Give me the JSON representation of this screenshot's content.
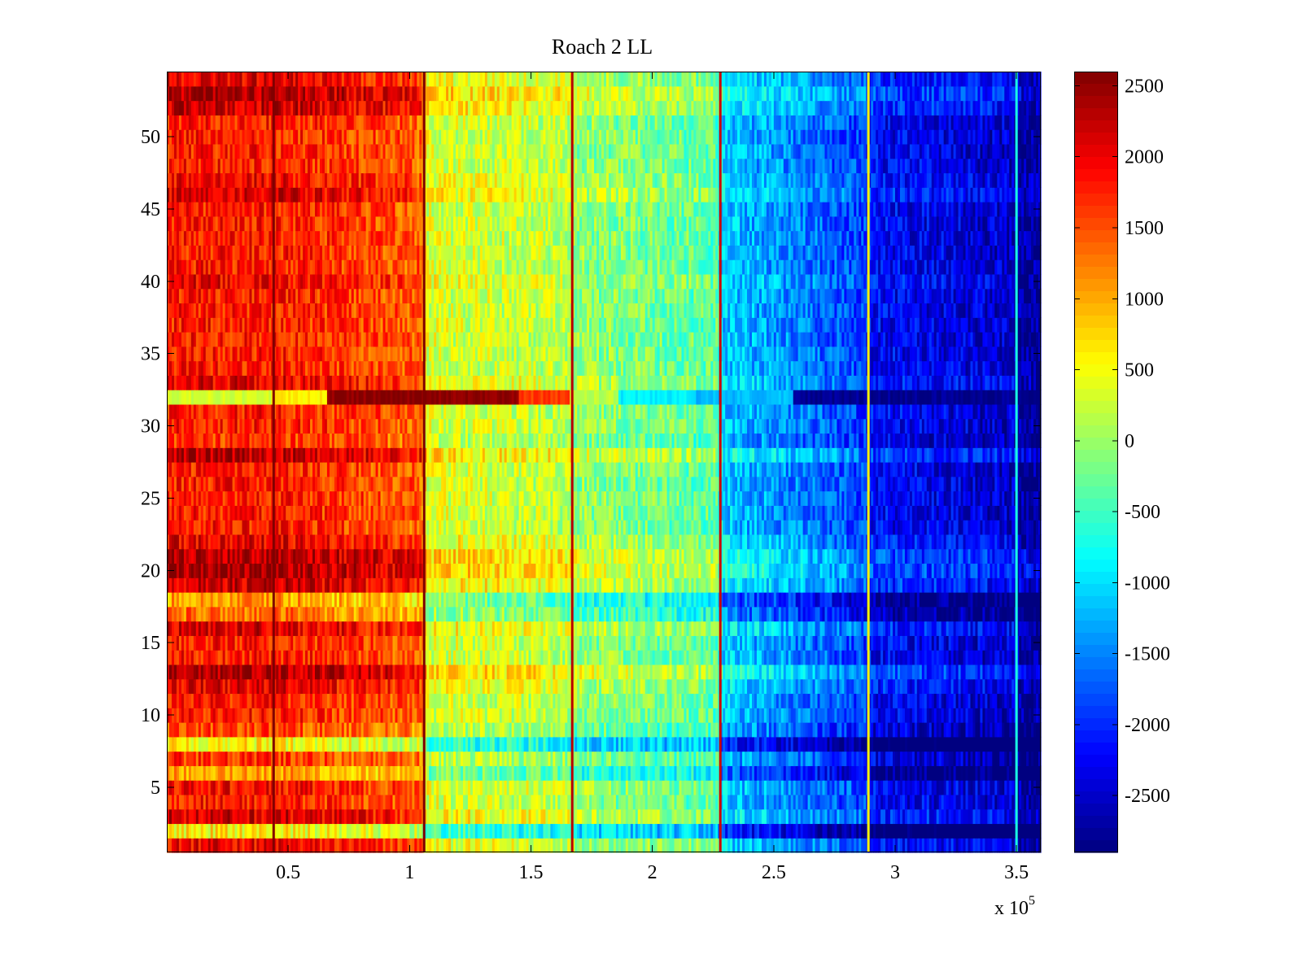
{
  "chart_data": {
    "type": "heatmap",
    "title": "Roach 2 LL",
    "xlabel": "",
    "ylabel": "",
    "x_multiplier_label": {
      "base": "x 10",
      "exponent": "5"
    },
    "xlim": [
      0,
      3.6
    ],
    "ylim": [
      0.5,
      54.5
    ],
    "x_ticks": [
      {
        "value": 0.5,
        "label": "0.5"
      },
      {
        "value": 1,
        "label": "1"
      },
      {
        "value": 1.5,
        "label": "1.5"
      },
      {
        "value": 2,
        "label": "2"
      },
      {
        "value": 2.5,
        "label": "2.5"
      },
      {
        "value": 3,
        "label": "3"
      },
      {
        "value": 3.5,
        "label": "3.5"
      }
    ],
    "y_ticks": [
      {
        "value": 5,
        "label": "5"
      },
      {
        "value": 10,
        "label": "10"
      },
      {
        "value": 15,
        "label": "15"
      },
      {
        "value": 20,
        "label": "20"
      },
      {
        "value": 25,
        "label": "25"
      },
      {
        "value": 30,
        "label": "30"
      },
      {
        "value": 35,
        "label": "35"
      },
      {
        "value": 40,
        "label": "40"
      },
      {
        "value": 45,
        "label": "45"
      },
      {
        "value": 50,
        "label": "50"
      }
    ],
    "rows": 54,
    "colormap": "jet",
    "colorbar": {
      "min": -2900,
      "max": 2600,
      "ticks": [
        {
          "value": 2500,
          "label": "2500"
        },
        {
          "value": 2000,
          "label": "2000"
        },
        {
          "value": 1500,
          "label": "1500"
        },
        {
          "value": 1000,
          "label": "1000"
        },
        {
          "value": 500,
          "label": "500"
        },
        {
          "value": 0,
          "label": "0"
        },
        {
          "value": -500,
          "label": "-500"
        },
        {
          "value": -1000,
          "label": "-1000"
        },
        {
          "value": -1500,
          "label": "-1500"
        },
        {
          "value": -2000,
          "label": "-2000"
        },
        {
          "value": -2500,
          "label": "-2500"
        }
      ]
    },
    "column_trend": [
      {
        "x": 0.0,
        "value": 1800
      },
      {
        "x": 0.44,
        "value": 1800
      },
      {
        "x": 0.66,
        "value": 1650
      },
      {
        "x": 1.05,
        "value": 1400
      },
      {
        "x": 1.07,
        "value": 350
      },
      {
        "x": 1.66,
        "value": 150
      },
      {
        "x": 1.68,
        "value": -50
      },
      {
        "x": 2.27,
        "value": -350
      },
      {
        "x": 2.29,
        "value": -1100
      },
      {
        "x": 2.88,
        "value": -1900
      },
      {
        "x": 2.9,
        "value": -2200
      },
      {
        "x": 3.49,
        "value": -2500
      },
      {
        "x": 3.51,
        "value": -2750
      },
      {
        "x": 3.6,
        "value": -2800
      }
    ],
    "vertical_lines": [
      {
        "x": 0.44,
        "value": 2600
      },
      {
        "x": 1.06,
        "value": 2600
      },
      {
        "x": 1.67,
        "value": 2300
      },
      {
        "x": 2.28,
        "value": 2200
      },
      {
        "x": 2.89,
        "value": 600
      },
      {
        "x": 3.5,
        "value": -700
      }
    ],
    "row_offsets": [
      {
        "row": 1,
        "value": 200
      },
      {
        "row": 2,
        "value": -1500
      },
      {
        "row": 3,
        "value": 400
      },
      {
        "row": 5,
        "value": 100
      },
      {
        "row": 6,
        "value": -900
      },
      {
        "row": 7,
        "value": -200
      },
      {
        "row": 8,
        "value": -1500
      },
      {
        "row": 9,
        "value": -300
      },
      {
        "row": 12,
        "value": 300
      },
      {
        "row": 13,
        "value": 700
      },
      {
        "row": 16,
        "value": 400
      },
      {
        "row": 17,
        "value": -600
      },
      {
        "row": 18,
        "value": -900
      },
      {
        "row": 19,
        "value": 500
      },
      {
        "row": 20,
        "value": 800
      },
      {
        "row": 21,
        "value": 700
      },
      {
        "row": 22,
        "value": 300
      },
      {
        "row": 28,
        "value": 600
      },
      {
        "row": 29,
        "value": -200
      },
      {
        "row": 33,
        "value": 300
      },
      {
        "row": 40,
        "value": 200
      },
      {
        "row": 46,
        "value": 400
      },
      {
        "row": 47,
        "value": 200
      },
      {
        "row": 52,
        "value": 500
      },
      {
        "row": 53,
        "value": 700
      },
      {
        "row": 54,
        "value": 300
      }
    ],
    "special_rows": [
      {
        "row": 32,
        "segments": [
          {
            "x_from": 0.0,
            "x_to": 0.43,
            "value": 300
          },
          {
            "x_from": 0.43,
            "x_to": 0.66,
            "value": 600
          },
          {
            "x_from": 0.66,
            "x_to": 1.45,
            "value": 2550
          },
          {
            "x_from": 1.45,
            "x_to": 1.66,
            "value": 1600
          },
          {
            "x_from": 1.66,
            "x_to": 1.86,
            "value": 150
          },
          {
            "x_from": 1.86,
            "x_to": 2.18,
            "value": -900
          },
          {
            "x_from": 2.18,
            "x_to": 2.58,
            "value": -1200
          },
          {
            "x_from": 2.58,
            "x_to": 3.6,
            "value": -2800
          }
        ]
      }
    ]
  }
}
